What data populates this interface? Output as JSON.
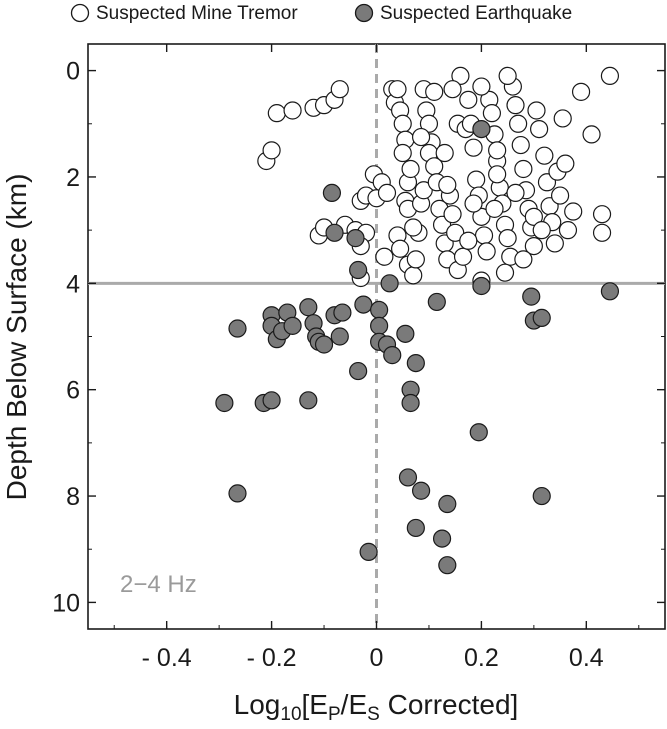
{
  "chart_data": {
    "type": "scatter",
    "title": "",
    "xlabel": "Log",
    "xlabel_sub": "10",
    "xlabel_bracket_open": "[",
    "xlabel_ep": "E",
    "xlabel_ep_sub": "P",
    "xlabel_slash": "/E",
    "xlabel_es_sub": "S",
    "xlabel_rest": " Corrected]",
    "ylabel": "Depth Below Surface  (km)",
    "xlim": [
      -0.55,
      0.55
    ],
    "ylim": [
      10.5,
      -0.5
    ],
    "y_inverted": true,
    "x_ticks": [
      -0.4,
      -0.2,
      0,
      0.2,
      0.4
    ],
    "x_tick_labels": [
      "- 0.4",
      "- 0.2",
      "0",
      "0.2",
      "0.4"
    ],
    "y_ticks": [
      0,
      2,
      4,
      6,
      8,
      10
    ],
    "y_tick_labels": [
      "0",
      "2",
      "4",
      "6",
      "8",
      "10"
    ],
    "grid": false,
    "legend_position": "top",
    "annotation": "2−4 Hz",
    "reference_lines": {
      "vertical_dashed_x": 0,
      "horizontal_solid_y": 4
    },
    "colors": {
      "mine_fill": "#ffffff",
      "quake_fill": "#7a7a7a",
      "edge": "#1a1a1a",
      "ref_line": "#aaaaaa",
      "annotation": "#9a9a9a"
    },
    "series": [
      {
        "name": "Suspected Mine Tremor",
        "marker": "open-circle",
        "points": [
          [
            -0.21,
            1.7
          ],
          [
            -0.2,
            1.5
          ],
          [
            -0.19,
            0.8
          ],
          [
            -0.16,
            0.75
          ],
          [
            -0.12,
            0.7
          ],
          [
            -0.1,
            0.65
          ],
          [
            -0.08,
            0.55
          ],
          [
            -0.07,
            0.35
          ],
          [
            -0.11,
            3.1
          ],
          [
            -0.1,
            2.95
          ],
          [
            -0.06,
            2.9
          ],
          [
            -0.04,
            3.0
          ],
          [
            -0.03,
            2.45
          ],
          [
            -0.02,
            2.35
          ],
          [
            -0.02,
            3.05
          ],
          [
            -0.03,
            3.3
          ],
          [
            -0.03,
            3.9
          ],
          [
            -0.005,
            1.95
          ],
          [
            0.0,
            2.4
          ],
          [
            0.01,
            2.1
          ],
          [
            0.015,
            3.5
          ],
          [
            0.02,
            2.3
          ],
          [
            0.03,
            0.35
          ],
          [
            0.035,
            0.6
          ],
          [
            0.04,
            0.35
          ],
          [
            0.045,
            0.75
          ],
          [
            0.05,
            1.0
          ],
          [
            0.055,
            1.3
          ],
          [
            0.05,
            1.55
          ],
          [
            0.06,
            2.1
          ],
          [
            0.065,
            1.85
          ],
          [
            0.055,
            2.45
          ],
          [
            0.06,
            2.6
          ],
          [
            0.04,
            3.1
          ],
          [
            0.045,
            3.35
          ],
          [
            0.06,
            3.65
          ],
          [
            0.07,
            3.85
          ],
          [
            0.075,
            3.55
          ],
          [
            0.08,
            3.05
          ],
          [
            0.085,
            2.5
          ],
          [
            0.09,
            2.25
          ],
          [
            0.09,
            0.35
          ],
          [
            0.095,
            0.75
          ],
          [
            0.1,
            1.0
          ],
          [
            0.105,
            1.35
          ],
          [
            0.1,
            1.55
          ],
          [
            0.11,
            0.4
          ],
          [
            0.11,
            1.8
          ],
          [
            0.115,
            2.1
          ],
          [
            0.12,
            2.6
          ],
          [
            0.125,
            2.9
          ],
          [
            0.13,
            3.25
          ],
          [
            0.135,
            3.55
          ],
          [
            0.14,
            2.35
          ],
          [
            0.145,
            2.7
          ],
          [
            0.15,
            3.05
          ],
          [
            0.155,
            1.0
          ],
          [
            0.16,
            0.1
          ],
          [
            0.17,
            1.1
          ],
          [
            0.175,
            0.55
          ],
          [
            0.18,
            1.0
          ],
          [
            0.185,
            1.45
          ],
          [
            0.19,
            2.05
          ],
          [
            0.195,
            2.35
          ],
          [
            0.2,
            2.75
          ],
          [
            0.205,
            3.1
          ],
          [
            0.21,
            3.4
          ],
          [
            0.215,
            0.55
          ],
          [
            0.22,
            0.8
          ],
          [
            0.225,
            1.2
          ],
          [
            0.23,
            1.7
          ],
          [
            0.235,
            2.2
          ],
          [
            0.24,
            2.5
          ],
          [
            0.245,
            2.9
          ],
          [
            0.25,
            3.15
          ],
          [
            0.255,
            3.5
          ],
          [
            0.26,
            0.3
          ],
          [
            0.265,
            0.65
          ],
          [
            0.27,
            1.0
          ],
          [
            0.275,
            1.4
          ],
          [
            0.28,
            1.85
          ],
          [
            0.285,
            2.25
          ],
          [
            0.29,
            2.6
          ],
          [
            0.295,
            2.95
          ],
          [
            0.3,
            3.3
          ],
          [
            0.305,
            0.75
          ],
          [
            0.31,
            1.1
          ],
          [
            0.32,
            1.6
          ],
          [
            0.325,
            2.1
          ],
          [
            0.33,
            2.55
          ],
          [
            0.335,
            2.85
          ],
          [
            0.34,
            3.25
          ],
          [
            0.345,
            1.9
          ],
          [
            0.35,
            2.35
          ],
          [
            0.355,
            0.9
          ],
          [
            0.36,
            1.75
          ],
          [
            0.365,
            3.0
          ],
          [
            0.375,
            2.65
          ],
          [
            0.39,
            0.4
          ],
          [
            0.41,
            1.2
          ],
          [
            0.43,
            2.7
          ],
          [
            0.43,
            3.05
          ],
          [
            0.445,
            0.1
          ],
          [
            0.155,
            3.75
          ],
          [
            0.165,
            3.5
          ],
          [
            0.175,
            3.2
          ],
          [
            0.185,
            2.5
          ],
          [
            0.2,
            3.95
          ],
          [
            0.225,
            2.6
          ],
          [
            0.245,
            3.8
          ],
          [
            0.265,
            2.3
          ],
          [
            0.28,
            3.55
          ],
          [
            0.3,
            2.75
          ],
          [
            0.315,
            3.0
          ],
          [
            0.2,
            0.3
          ],
          [
            0.23,
            1.95
          ],
          [
            0.25,
            0.1
          ],
          [
            0.13,
            1.55
          ],
          [
            0.085,
            1.25
          ],
          [
            0.07,
            2.95
          ],
          [
            0.135,
            2.15
          ],
          [
            0.145,
            0.35
          ],
          [
            0.23,
            1.5
          ]
        ]
      },
      {
        "name": "Suspected Earthquake",
        "marker": "filled-circle",
        "points": [
          [
            -0.29,
            6.25
          ],
          [
            -0.265,
            4.85
          ],
          [
            -0.265,
            7.95
          ],
          [
            -0.215,
            6.25
          ],
          [
            -0.2,
            6.2
          ],
          [
            -0.2,
            4.6
          ],
          [
            -0.2,
            4.8
          ],
          [
            -0.19,
            5.05
          ],
          [
            -0.18,
            4.9
          ],
          [
            -0.17,
            4.55
          ],
          [
            -0.16,
            4.8
          ],
          [
            -0.13,
            4.45
          ],
          [
            -0.13,
            6.2
          ],
          [
            -0.12,
            4.75
          ],
          [
            -0.115,
            5.0
          ],
          [
            -0.11,
            5.1
          ],
          [
            -0.1,
            5.15
          ],
          [
            -0.085,
            2.3
          ],
          [
            -0.08,
            3.05
          ],
          [
            -0.08,
            4.6
          ],
          [
            -0.07,
            5.0
          ],
          [
            -0.065,
            4.55
          ],
          [
            -0.04,
            3.15
          ],
          [
            -0.035,
            3.75
          ],
          [
            -0.035,
            5.65
          ],
          [
            -0.025,
            4.4
          ],
          [
            -0.015,
            9.05
          ],
          [
            0.005,
            4.5
          ],
          [
            0.005,
            4.8
          ],
          [
            0.005,
            5.1
          ],
          [
            0.02,
            5.15
          ],
          [
            0.025,
            4.0
          ],
          [
            0.03,
            5.35
          ],
          [
            0.055,
            4.95
          ],
          [
            0.06,
            7.65
          ],
          [
            0.065,
            6.0
          ],
          [
            0.065,
            6.25
          ],
          [
            0.075,
            5.5
          ],
          [
            0.075,
            8.6
          ],
          [
            0.085,
            7.9
          ],
          [
            0.115,
            4.35
          ],
          [
            0.125,
            8.8
          ],
          [
            0.135,
            8.15
          ],
          [
            0.135,
            9.3
          ],
          [
            0.195,
            6.8
          ],
          [
            0.2,
            4.05
          ],
          [
            0.2,
            1.1
          ],
          [
            0.295,
            4.25
          ],
          [
            0.3,
            4.7
          ],
          [
            0.315,
            4.65
          ],
          [
            0.315,
            8.0
          ],
          [
            0.445,
            4.15
          ]
        ]
      }
    ]
  }
}
